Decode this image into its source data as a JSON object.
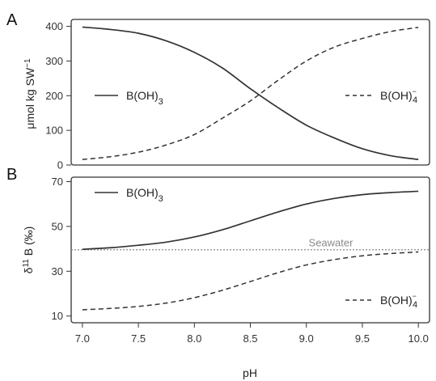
{
  "chart_data": [
    {
      "panel": "A",
      "type": "line",
      "ylabel": "μmol kg SW",
      "ylabel_sup": "−1",
      "xlim": [
        6.9,
        10.1
      ],
      "ylim": [
        0,
        420
      ],
      "yticks": [
        0,
        100,
        200,
        300,
        400
      ],
      "xticks": [],
      "series": [
        {
          "name": "B(OH)",
          "name_sub": "3",
          "style": "solid",
          "color": "#333333",
          "x": [
            7.0,
            7.25,
            7.5,
            7.75,
            8.0,
            8.25,
            8.5,
            8.75,
            9.0,
            9.25,
            9.5,
            9.75,
            10.0
          ],
          "values": [
            398,
            391,
            380,
            358,
            325,
            280,
            220,
            165,
            115,
            78,
            47,
            27,
            16
          ]
        },
        {
          "name": "B(OH)",
          "name_sub": "4",
          "name_sup": "−",
          "style": "dashed",
          "color": "#333333",
          "x": [
            7.0,
            7.25,
            7.5,
            7.75,
            8.0,
            8.25,
            8.5,
            8.75,
            9.0,
            9.25,
            9.5,
            9.75,
            10.0
          ],
          "values": [
            16,
            24,
            37,
            58,
            88,
            135,
            185,
            245,
            300,
            340,
            365,
            385,
            397
          ]
        }
      ]
    },
    {
      "panel": "B",
      "type": "line",
      "ylabel": "δ",
      "ylabel_sup": "11",
      "ylabel_rest": " B (‰)",
      "xlabel": "pH",
      "xlim": [
        6.9,
        10.1
      ],
      "ylim": [
        7,
        72
      ],
      "yticks": [
        10,
        30,
        50,
        70
      ],
      "xticks": [
        "7.0",
        "7.5",
        "8.0",
        "8.5",
        "9.0",
        "9.5",
        "10.0"
      ],
      "seawater": {
        "label": "Seawater",
        "value": 39.6,
        "color": "#8a8a8a"
      },
      "series": [
        {
          "name": "B(OH)",
          "name_sub": "3",
          "style": "solid",
          "color": "#333333",
          "x": [
            7.0,
            7.25,
            7.5,
            7.75,
            8.0,
            8.25,
            8.5,
            8.75,
            9.0,
            9.25,
            9.5,
            9.75,
            10.0
          ],
          "values": [
            39.8,
            40.5,
            41.6,
            43.0,
            45.3,
            48.5,
            52.5,
            56.5,
            60.0,
            62.5,
            64.2,
            65.1,
            65.7
          ]
        },
        {
          "name": "B(OH)",
          "name_sub": "4",
          "name_sup": "−",
          "style": "dashed",
          "color": "#333333",
          "x": [
            7.0,
            7.25,
            7.5,
            7.75,
            8.0,
            8.25,
            8.5,
            8.75,
            9.0,
            9.25,
            9.5,
            9.75,
            10.0
          ],
          "values": [
            12.8,
            13.4,
            14.3,
            15.8,
            18.2,
            21.5,
            25.4,
            29.4,
            32.8,
            35.2,
            36.9,
            37.9,
            38.6
          ]
        }
      ]
    }
  ]
}
